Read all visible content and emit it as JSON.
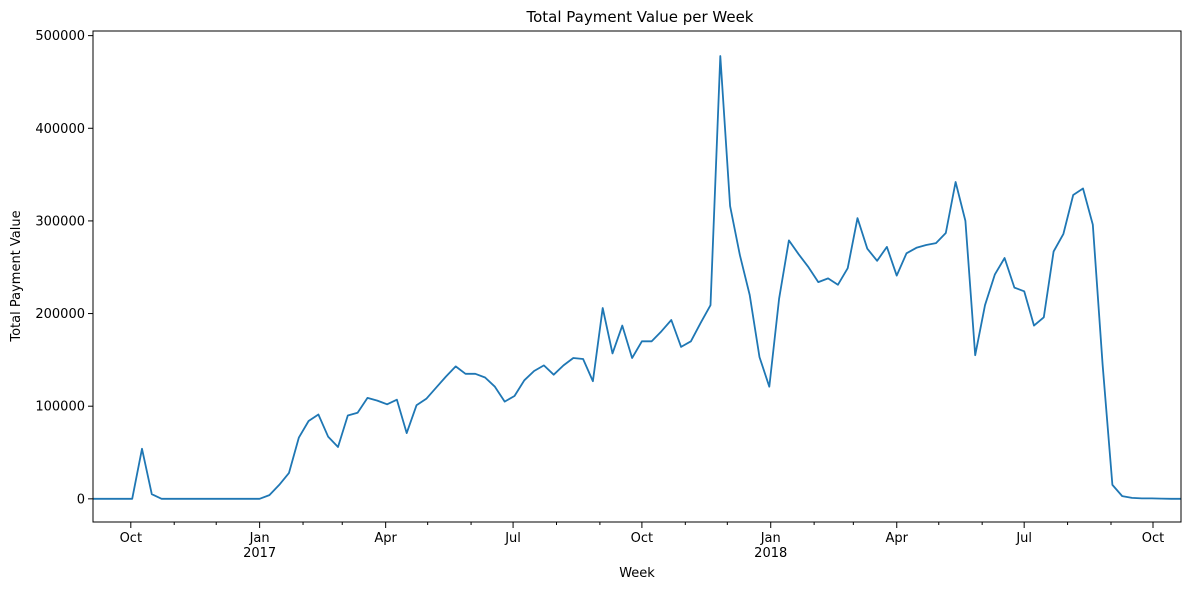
{
  "chart_data": {
    "type": "line",
    "title": "Total Payment Value per Week",
    "xlabel": "Week",
    "ylabel": "Total Payment Value",
    "x_range": [
      "2016-09-04",
      "2018-10-21"
    ],
    "ylim": [
      -25000,
      505000
    ],
    "grid": false,
    "legend": "none",
    "color": "#1f77b4",
    "y_ticks": [
      {
        "value": 0,
        "label": "0"
      },
      {
        "value": 100000,
        "label": "100000"
      },
      {
        "value": 200000,
        "label": "200000"
      },
      {
        "value": 300000,
        "label": "300000"
      },
      {
        "value": 400000,
        "label": "400000"
      },
      {
        "value": 500000,
        "label": "500000"
      }
    ],
    "x_major_ticks": [
      {
        "date": "2016-10-01",
        "label": "Oct",
        "sublabel": ""
      },
      {
        "date": "2017-01-01",
        "label": "Jan",
        "sublabel": "2017"
      },
      {
        "date": "2017-04-01",
        "label": "Apr",
        "sublabel": ""
      },
      {
        "date": "2017-07-01",
        "label": "Jul",
        "sublabel": ""
      },
      {
        "date": "2017-10-01",
        "label": "Oct",
        "sublabel": ""
      },
      {
        "date": "2018-01-01",
        "label": "Jan",
        "sublabel": "2018"
      },
      {
        "date": "2018-04-01",
        "label": "Apr",
        "sublabel": ""
      },
      {
        "date": "2018-07-01",
        "label": "Jul",
        "sublabel": ""
      },
      {
        "date": "2018-10-01",
        "label": "Oct",
        "sublabel": ""
      }
    ],
    "x_minor_ticks": [
      "2016-09-01",
      "2016-11-01",
      "2016-12-01",
      "2017-02-01",
      "2017-03-01",
      "2017-05-01",
      "2017-06-01",
      "2017-08-01",
      "2017-09-01",
      "2017-11-01",
      "2017-12-01",
      "2018-02-01",
      "2018-03-01",
      "2018-05-01",
      "2018-06-01",
      "2018-08-01",
      "2018-09-01"
    ],
    "series": [
      {
        "x": [
          "2016-09-04",
          "2016-09-11",
          "2016-09-18",
          "2016-09-25",
          "2016-10-02",
          "2016-10-09",
          "2016-10-16",
          "2016-10-23",
          "2016-10-30",
          "2016-11-06",
          "2016-11-13",
          "2016-11-20",
          "2016-11-27",
          "2016-12-04",
          "2016-12-11",
          "2016-12-18",
          "2016-12-25",
          "2017-01-01",
          "2017-01-08",
          "2017-01-15",
          "2017-01-22",
          "2017-01-29",
          "2017-02-05",
          "2017-02-12",
          "2017-02-19",
          "2017-02-26",
          "2017-03-05",
          "2017-03-12",
          "2017-03-19",
          "2017-03-26",
          "2017-04-02",
          "2017-04-09",
          "2017-04-16",
          "2017-04-23",
          "2017-04-30",
          "2017-05-07",
          "2017-05-14",
          "2017-05-21",
          "2017-05-28",
          "2017-06-04",
          "2017-06-11",
          "2017-06-18",
          "2017-06-25",
          "2017-07-02",
          "2017-07-09",
          "2017-07-16",
          "2017-07-23",
          "2017-07-30",
          "2017-08-06",
          "2017-08-13",
          "2017-08-20",
          "2017-08-27",
          "2017-09-03",
          "2017-09-10",
          "2017-09-17",
          "2017-09-24",
          "2017-10-01",
          "2017-10-08",
          "2017-10-15",
          "2017-10-22",
          "2017-10-29",
          "2017-11-05",
          "2017-11-12",
          "2017-11-19",
          "2017-11-26",
          "2017-12-03",
          "2017-12-10",
          "2017-12-17",
          "2017-12-24",
          "2017-12-31",
          "2018-01-07",
          "2018-01-14",
          "2018-01-21",
          "2018-01-28",
          "2018-02-04",
          "2018-02-11",
          "2018-02-18",
          "2018-02-25",
          "2018-03-04",
          "2018-03-11",
          "2018-03-18",
          "2018-03-25",
          "2018-04-01",
          "2018-04-08",
          "2018-04-15",
          "2018-04-22",
          "2018-04-29",
          "2018-05-06",
          "2018-05-13",
          "2018-05-20",
          "2018-05-27",
          "2018-06-03",
          "2018-06-10",
          "2018-06-17",
          "2018-06-24",
          "2018-07-01",
          "2018-07-08",
          "2018-07-15",
          "2018-07-22",
          "2018-07-29",
          "2018-08-05",
          "2018-08-12",
          "2018-08-19",
          "2018-08-26",
          "2018-09-02",
          "2018-09-09",
          "2018-09-16",
          "2018-09-23",
          "2018-09-30",
          "2018-10-07",
          "2018-10-14",
          "2018-10-21"
        ],
        "y": [
          0,
          0,
          0,
          0,
          0,
          54000,
          5000,
          0,
          0,
          0,
          0,
          0,
          0,
          0,
          0,
          0,
          0,
          0,
          4000,
          15000,
          28000,
          66000,
          84000,
          91000,
          67000,
          56000,
          90000,
          93000,
          109000,
          106000,
          102000,
          107000,
          71000,
          101000,
          108000,
          120000,
          132000,
          143000,
          135000,
          135000,
          131000,
          121000,
          105000,
          111000,
          128000,
          138000,
          144000,
          134000,
          144000,
          152000,
          151000,
          127000,
          206000,
          157000,
          187000,
          152000,
          170000,
          170000,
          181000,
          193000,
          164000,
          170000,
          190000,
          209000,
          478000,
          316000,
          263000,
          220000,
          153000,
          121000,
          216000,
          279000,
          264000,
          250000,
          234000,
          238000,
          231000,
          249000,
          303000,
          270000,
          257000,
          272000,
          241000,
          265000,
          271000,
          274000,
          276000,
          287000,
          342000,
          300000,
          155000,
          209000,
          242000,
          260000,
          228000,
          224000,
          187000,
          196000,
          267000,
          286000,
          328000,
          335000,
          296000,
          145000,
          15000,
          3000,
          1000,
          500,
          500,
          300,
          0,
          0
        ]
      }
    ]
  }
}
